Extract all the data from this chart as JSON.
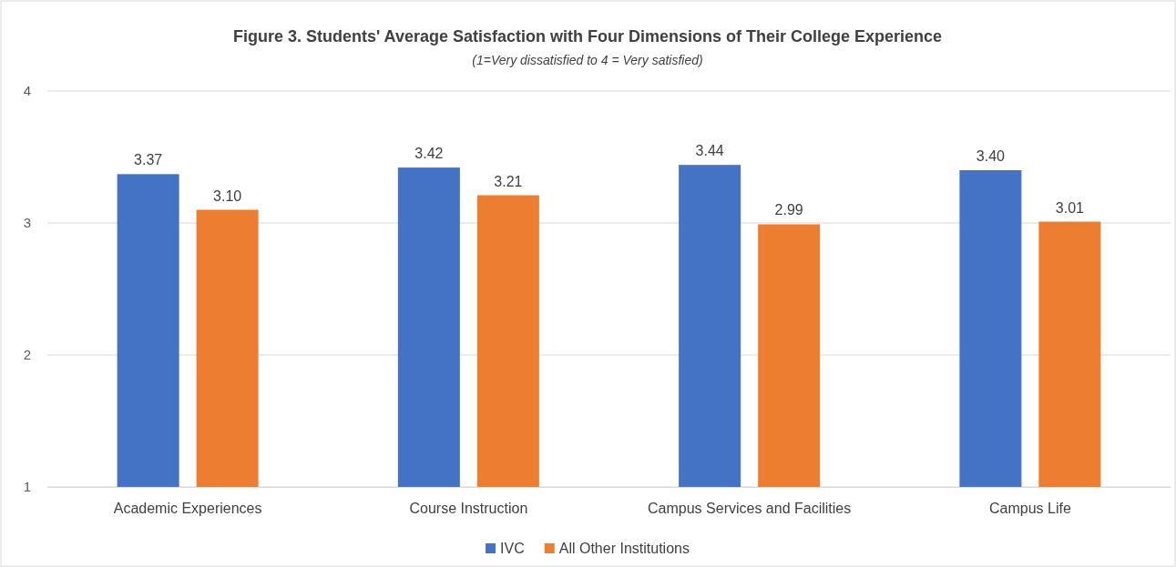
{
  "chart_data": {
    "type": "bar",
    "title": "Figure 3. Students' Average Satisfaction with Four Dimensions of Their College Experience",
    "subtitle": "(1=Very dissatisfied to 4 = Very satisfied)",
    "categories": [
      "Academic Experiences",
      "Course Instruction",
      "Campus Services and Facilities",
      "Campus Life"
    ],
    "series": [
      {
        "name": "IVC",
        "color": "#4472c4",
        "values": [
          3.37,
          3.42,
          3.44,
          3.4
        ],
        "value_labels": [
          "3.37",
          "3.42",
          "3.44",
          "3.40"
        ]
      },
      {
        "name": "All Other Institutions",
        "color": "#ed7d31",
        "values": [
          3.1,
          3.21,
          2.99,
          3.01
        ],
        "value_labels": [
          "3.10",
          "3.21",
          "2.99",
          "3.01"
        ]
      }
    ],
    "ylim": [
      1,
      4
    ],
    "yticks": [
      1,
      2,
      3,
      4
    ],
    "grid": "y",
    "legend": "bottom"
  }
}
